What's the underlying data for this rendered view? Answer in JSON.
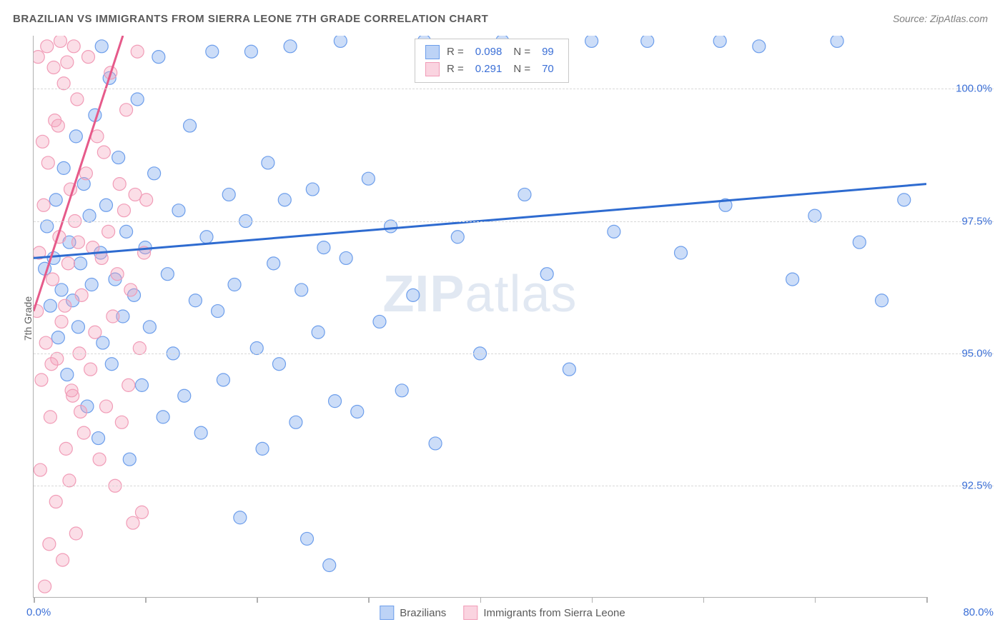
{
  "title": "BRAZILIAN VS IMMIGRANTS FROM SIERRA LEONE 7TH GRADE CORRELATION CHART",
  "source_label": "Source: ZipAtlas.com",
  "ylabel": "7th Grade",
  "watermark": {
    "part1": "ZIP",
    "part2": "atlas"
  },
  "chart": {
    "type": "scatter",
    "xlim": [
      0,
      80
    ],
    "ylim": [
      90.4,
      101.0
    ],
    "x_tick_positions": [
      0,
      10,
      20,
      30,
      40,
      50,
      60,
      70,
      80
    ],
    "x_tick_labels_shown": {
      "start": "0.0%",
      "end": "80.0%"
    },
    "y_ticks": [
      92.5,
      95.0,
      97.5,
      100.0
    ],
    "y_tick_labels": [
      "92.5%",
      "95.0%",
      "97.5%",
      "100.0%"
    ],
    "grid_color": "#d8d8d8",
    "axis_color": "#b0b0b0",
    "background_color": "#ffffff",
    "tick_label_color": "#3b6fd6",
    "series": [
      {
        "name": "Brazilians",
        "color_fill": "rgba(109,158,235,0.35)",
        "color_stroke": "#6d9eeb",
        "trend_color": "#2e6bd0",
        "trend_width": 3,
        "trend": {
          "x1": 0,
          "y1": 96.8,
          "x2": 80,
          "y2": 98.2
        },
        "R": "0.098",
        "N": "99",
        "marker_radius": 9,
        "points": [
          [
            1.0,
            96.6
          ],
          [
            1.2,
            97.4
          ],
          [
            1.5,
            95.9
          ],
          [
            1.8,
            96.8
          ],
          [
            2.0,
            97.9
          ],
          [
            2.2,
            95.3
          ],
          [
            2.5,
            96.2
          ],
          [
            2.7,
            98.5
          ],
          [
            3.0,
            94.6
          ],
          [
            3.2,
            97.1
          ],
          [
            3.5,
            96.0
          ],
          [
            3.8,
            99.1
          ],
          [
            4.0,
            95.5
          ],
          [
            4.2,
            96.7
          ],
          [
            4.5,
            98.2
          ],
          [
            4.8,
            94.0
          ],
          [
            5.0,
            97.6
          ],
          [
            5.2,
            96.3
          ],
          [
            5.5,
            99.5
          ],
          [
            5.8,
            93.4
          ],
          [
            6.0,
            96.9
          ],
          [
            6.2,
            95.2
          ],
          [
            6.5,
            97.8
          ],
          [
            6.8,
            100.2
          ],
          [
            7.0,
            94.8
          ],
          [
            7.3,
            96.4
          ],
          [
            7.6,
            98.7
          ],
          [
            8.0,
            95.7
          ],
          [
            8.3,
            97.3
          ],
          [
            8.6,
            93.0
          ],
          [
            9.0,
            96.1
          ],
          [
            9.3,
            99.8
          ],
          [
            9.7,
            94.4
          ],
          [
            10.0,
            97.0
          ],
          [
            10.4,
            95.5
          ],
          [
            10.8,
            98.4
          ],
          [
            11.2,
            100.6
          ],
          [
            11.6,
            93.8
          ],
          [
            12.0,
            96.5
          ],
          [
            12.5,
            95.0
          ],
          [
            13.0,
            97.7
          ],
          [
            13.5,
            94.2
          ],
          [
            14.0,
            99.3
          ],
          [
            14.5,
            96.0
          ],
          [
            15.0,
            93.5
          ],
          [
            15.5,
            97.2
          ],
          [
            16.0,
            100.7
          ],
          [
            16.5,
            95.8
          ],
          [
            17.0,
            94.5
          ],
          [
            17.5,
            98.0
          ],
          [
            18.0,
            96.3
          ],
          [
            18.5,
            91.9
          ],
          [
            19.0,
            97.5
          ],
          [
            19.5,
            100.7
          ],
          [
            20.0,
            95.1
          ],
          [
            20.5,
            93.2
          ],
          [
            21.0,
            98.6
          ],
          [
            21.5,
            96.7
          ],
          [
            22.0,
            94.8
          ],
          [
            22.5,
            97.9
          ],
          [
            23.0,
            100.8
          ],
          [
            23.5,
            93.7
          ],
          [
            24.0,
            96.2
          ],
          [
            24.5,
            91.5
          ],
          [
            25.0,
            98.1
          ],
          [
            25.5,
            95.4
          ],
          [
            26.0,
            97.0
          ],
          [
            26.5,
            91.0
          ],
          [
            27.0,
            94.1
          ],
          [
            27.5,
            100.9
          ],
          [
            28.0,
            96.8
          ],
          [
            29.0,
            93.9
          ],
          [
            30.0,
            98.3
          ],
          [
            31.0,
            95.6
          ],
          [
            32.0,
            97.4
          ],
          [
            33.0,
            94.3
          ],
          [
            34.0,
            96.1
          ],
          [
            35.0,
            100.9
          ],
          [
            36.0,
            93.3
          ],
          [
            38.0,
            97.2
          ],
          [
            40.0,
            95.0
          ],
          [
            42.0,
            100.9
          ],
          [
            44.0,
            98.0
          ],
          [
            46.0,
            96.5
          ],
          [
            48.0,
            94.7
          ],
          [
            50.0,
            100.9
          ],
          [
            52.0,
            97.3
          ],
          [
            55.0,
            100.9
          ],
          [
            58.0,
            96.9
          ],
          [
            62.0,
            97.8
          ],
          [
            65.0,
            100.8
          ],
          [
            68.0,
            96.4
          ],
          [
            70.0,
            97.6
          ],
          [
            72.0,
            100.9
          ],
          [
            74.0,
            97.1
          ],
          [
            76.0,
            96.0
          ],
          [
            78.0,
            97.9
          ],
          [
            61.5,
            100.9
          ],
          [
            6.1,
            100.8
          ]
        ]
      },
      {
        "name": "Immigrants from Sierra Leone",
        "color_fill": "rgba(244,160,186,0.35)",
        "color_stroke": "#f19cb7",
        "trend_color": "#e65a8a",
        "trend_width": 3,
        "trend": {
          "x1": 0,
          "y1": 95.8,
          "x2": 8,
          "y2": 101.0
        },
        "trend_dashed_extension": true,
        "R": "0.291",
        "N": "70",
        "marker_radius": 9,
        "points": [
          [
            0.3,
            95.8
          ],
          [
            0.5,
            96.9
          ],
          [
            0.7,
            94.5
          ],
          [
            0.9,
            97.8
          ],
          [
            1.1,
            95.2
          ],
          [
            1.3,
            98.6
          ],
          [
            1.5,
            93.8
          ],
          [
            1.7,
            96.4
          ],
          [
            1.9,
            99.4
          ],
          [
            2.1,
            94.9
          ],
          [
            2.3,
            97.2
          ],
          [
            2.5,
            95.6
          ],
          [
            2.7,
            100.1
          ],
          [
            2.9,
            93.2
          ],
          [
            3.1,
            96.7
          ],
          [
            3.3,
            98.1
          ],
          [
            3.5,
            94.2
          ],
          [
            3.7,
            97.5
          ],
          [
            3.9,
            99.8
          ],
          [
            4.1,
            95.0
          ],
          [
            4.3,
            96.1
          ],
          [
            4.5,
            93.5
          ],
          [
            4.7,
            98.4
          ],
          [
            4.9,
            100.6
          ],
          [
            5.1,
            94.7
          ],
          [
            5.3,
            97.0
          ],
          [
            5.5,
            95.4
          ],
          [
            5.7,
            99.1
          ],
          [
            5.9,
            93.0
          ],
          [
            6.1,
            96.8
          ],
          [
            6.3,
            98.8
          ],
          [
            6.5,
            94.0
          ],
          [
            6.7,
            97.3
          ],
          [
            6.9,
            100.3
          ],
          [
            7.1,
            95.7
          ],
          [
            7.3,
            92.5
          ],
          [
            7.5,
            96.5
          ],
          [
            7.7,
            98.2
          ],
          [
            7.9,
            93.7
          ],
          [
            8.1,
            97.7
          ],
          [
            8.3,
            99.6
          ],
          [
            8.5,
            94.4
          ],
          [
            8.7,
            96.2
          ],
          [
            8.9,
            91.8
          ],
          [
            9.1,
            98.0
          ],
          [
            9.3,
            100.7
          ],
          [
            9.5,
            95.1
          ],
          [
            9.7,
            92.0
          ],
          [
            9.9,
            96.9
          ],
          [
            10.1,
            97.9
          ],
          [
            0.4,
            100.6
          ],
          [
            0.6,
            92.8
          ],
          [
            0.8,
            99.0
          ],
          [
            1.0,
            90.6
          ],
          [
            1.2,
            100.8
          ],
          [
            1.4,
            91.4
          ],
          [
            1.6,
            94.8
          ],
          [
            1.8,
            100.4
          ],
          [
            2.0,
            92.2
          ],
          [
            2.2,
            99.3
          ],
          [
            2.4,
            100.9
          ],
          [
            2.6,
            91.1
          ],
          [
            2.8,
            95.9
          ],
          [
            3.0,
            100.5
          ],
          [
            3.2,
            92.6
          ],
          [
            3.4,
            94.3
          ],
          [
            3.6,
            100.8
          ],
          [
            3.8,
            91.6
          ],
          [
            4.0,
            97.1
          ],
          [
            4.2,
            93.9
          ]
        ]
      }
    ],
    "legend_top": {
      "rows": [
        {
          "swatch_fill": "rgba(109,158,235,0.45)",
          "swatch_stroke": "#6d9eeb",
          "R_label": "R =",
          "R_val": "0.098",
          "N_label": "N =",
          "N_val": "99"
        },
        {
          "swatch_fill": "rgba(244,160,186,0.45)",
          "swatch_stroke": "#f19cb7",
          "R_label": "R =",
          "R_val": "0.291",
          "N_label": "N =",
          "N_val": "70"
        }
      ]
    },
    "legend_bottom": [
      {
        "swatch_fill": "rgba(109,158,235,0.45)",
        "swatch_stroke": "#6d9eeb",
        "label": "Brazilians"
      },
      {
        "swatch_fill": "rgba(244,160,186,0.45)",
        "swatch_stroke": "#f19cb7",
        "label": "Immigrants from Sierra Leone"
      }
    ]
  }
}
